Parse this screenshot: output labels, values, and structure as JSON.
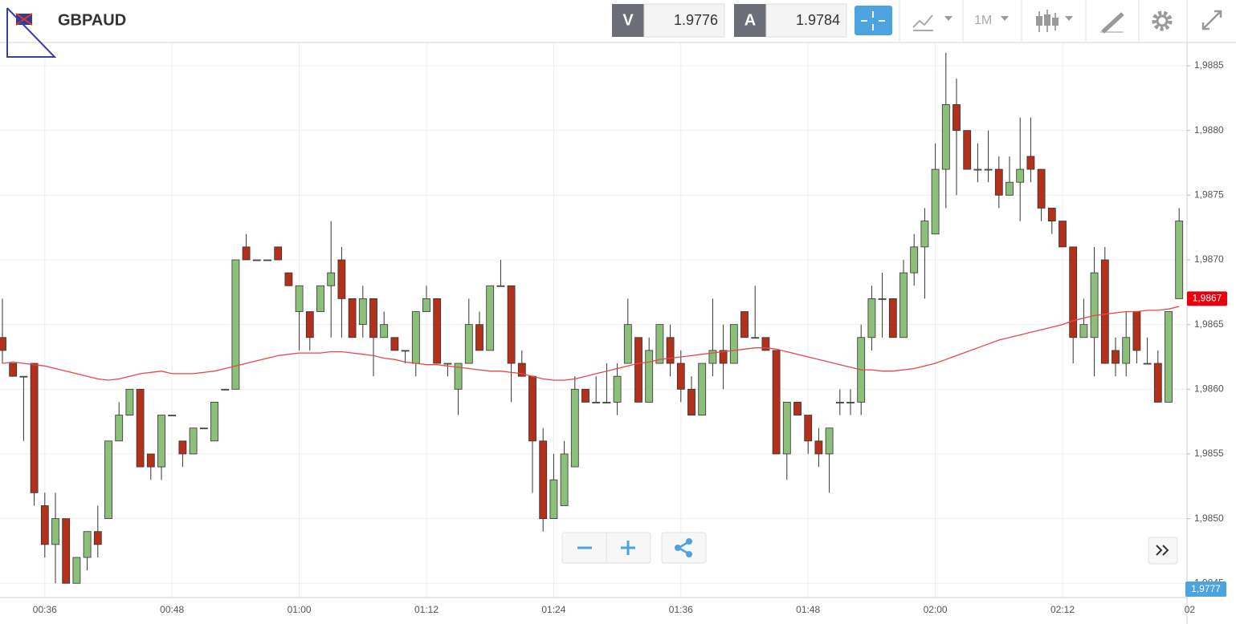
{
  "header": {
    "symbol": "GBPAUD",
    "bid_label": "V",
    "bid": "1.9776",
    "ask_label": "A",
    "ask": "1.9784",
    "timeframe": "1M"
  },
  "chart_data": {
    "type": "candlestick",
    "categories": [
      null,
      null,
      null,
      null,
      "00:36",
      null,
      null,
      null,
      null,
      null,
      null,
      null,
      null,
      null,
      null,
      null,
      "00:48",
      null,
      null,
      null,
      null,
      null,
      null,
      null,
      null,
      null,
      null,
      null,
      "01:00",
      null,
      null,
      null,
      null,
      null,
      null,
      null,
      null,
      null,
      null,
      null,
      "01:12",
      null,
      null,
      null,
      null,
      null,
      null,
      null,
      null,
      null,
      null,
      null,
      "01:24",
      null,
      null,
      null,
      null,
      null,
      null,
      null,
      null,
      null,
      null,
      null,
      "01:36",
      null,
      null,
      null,
      null,
      null,
      null,
      null,
      null,
      null,
      null,
      null,
      "01:48",
      null,
      null,
      null,
      null,
      null,
      null,
      null,
      null,
      null,
      null,
      null,
      "02:00",
      null,
      null,
      null,
      null,
      null,
      null,
      null,
      null,
      null,
      null,
      null,
      "02:12",
      null,
      null,
      null,
      null,
      null,
      null,
      null,
      null,
      null,
      null,
      null,
      "02"
    ],
    "open": [
      1.9864,
      1.9862,
      1.9861,
      1.9862,
      1.9851,
      1.9848,
      1.985,
      1.9845,
      1.9847,
      1.9849,
      1.985,
      1.9856,
      1.9858,
      1.986,
      1.9855,
      1.9854,
      1.9858,
      1.9856,
      1.9855,
      1.9857,
      1.9856,
      1.986,
      1.986,
      1.9871,
      1.987,
      1.987,
      1.9871,
      1.9869,
      1.9866,
      1.9866,
      1.9866,
      1.9868,
      1.987,
      1.9867,
      1.9865,
      1.9867,
      1.9864,
      1.9864,
      1.9863,
      1.9862,
      1.9866,
      1.9867,
      1.9862,
      1.986,
      1.9862,
      1.9865,
      1.9863,
      1.9868,
      1.9868,
      1.9862,
      1.9861,
      1.9856,
      1.985,
      1.9851,
      1.9854,
      1.986,
      1.9859,
      1.9859,
      1.9859,
      1.9862,
      1.9864,
      1.9859,
      1.9862,
      1.9864,
      1.9862,
      1.986,
      1.9858,
      1.9862,
      1.9863,
      1.9862,
      1.9866,
      1.9864,
      1.9864,
      1.9863,
      1.9855,
      1.9859,
      1.9858,
      1.9856,
      1.9855,
      1.9859,
      1.9859,
      1.9859,
      1.9864,
      1.9867,
      1.9867,
      1.9864,
      1.9869,
      1.9871,
      1.9872,
      1.9877,
      1.9882,
      1.988,
      1.9877,
      1.9877,
      1.9877,
      1.9875,
      1.9876,
      1.9878,
      1.9877,
      1.9874,
      1.9873,
      1.9871,
      1.9864,
      1.9864,
      1.987,
      1.9863,
      1.9862,
      1.9866,
      1.9862,
      1.9862,
      1.9859,
      1.9867,
      null
    ],
    "high": [
      1.9867,
      1.9862,
      1.9861,
      1.9862,
      1.9852,
      1.9852,
      1.985,
      1.9847,
      1.9849,
      1.9851,
      1.9856,
      1.9859,
      1.986,
      1.986,
      1.9855,
      1.9858,
      1.9858,
      1.9856,
      1.9857,
      1.9857,
      1.9859,
      1.986,
      1.987,
      1.9872,
      1.987,
      1.987,
      1.9871,
      1.9869,
      1.9868,
      1.9866,
      1.9868,
      1.9873,
      1.9871,
      1.9867,
      1.9868,
      1.9867,
      1.9866,
      1.9864,
      1.9863,
      1.9866,
      1.9868,
      1.9867,
      1.9862,
      1.9862,
      1.9867,
      1.9866,
      1.9868,
      1.987,
      1.9868,
      1.9863,
      1.9861,
      1.9857,
      1.9855,
      1.9856,
      1.9861,
      1.986,
      1.9861,
      1.9862,
      1.9862,
      1.9867,
      1.9864,
      1.9864,
      1.9865,
      1.9865,
      1.9863,
      1.9861,
      1.9862,
      1.9867,
      1.9865,
      1.9865,
      1.9866,
      1.9868,
      1.9864,
      1.9863,
      1.9859,
      1.9859,
      1.9858,
      1.9857,
      1.9857,
      1.986,
      1.986,
      1.9865,
      1.9868,
      1.9869,
      1.9867,
      1.987,
      1.9872,
      1.9874,
      1.9879,
      1.9886,
      1.9884,
      1.988,
      1.9879,
      1.988,
      1.9878,
      1.9878,
      1.9881,
      1.9881,
      1.9877,
      1.9874,
      1.9873,
      1.9871,
      1.9867,
      1.9871,
      1.9871,
      1.9864,
      1.9866,
      1.9866,
      1.9864,
      1.9863,
      1.9866,
      1.9874,
      null
    ],
    "low": [
      1.9862,
      1.9861,
      1.9856,
      1.9851,
      1.9847,
      1.9845,
      1.9845,
      1.9845,
      1.9846,
      1.9847,
      1.985,
      1.9856,
      1.9858,
      1.9854,
      1.9853,
      1.9853,
      1.9858,
      1.9854,
      1.9855,
      1.9857,
      1.9856,
      1.986,
      1.986,
      1.987,
      1.987,
      1.987,
      1.987,
      1.9868,
      1.9863,
      1.9863,
      1.9866,
      1.9864,
      1.9864,
      1.9864,
      1.9864,
      1.9861,
      1.9864,
      1.9863,
      1.9862,
      1.9861,
      1.9866,
      1.9862,
      1.9861,
      1.9858,
      1.9862,
      1.9863,
      1.9863,
      1.9868,
      1.9859,
      1.9861,
      1.9852,
      1.9849,
      1.985,
      1.9851,
      1.9854,
      1.9859,
      1.9859,
      1.9859,
      1.9858,
      1.9862,
      1.9859,
      1.9859,
      1.9862,
      1.9861,
      1.9859,
      1.9858,
      1.9858,
      1.9861,
      1.986,
      1.9862,
      1.9864,
      1.9864,
      1.9863,
      1.9855,
      1.9853,
      1.9858,
      1.9855,
      1.9854,
      1.9852,
      1.9858,
      1.9858,
      1.9858,
      1.9863,
      1.9864,
      1.9864,
      1.9864,
      1.9868,
      1.9867,
      1.9872,
      1.9874,
      1.9875,
      1.9877,
      1.9876,
      1.9876,
      1.9874,
      1.9875,
      1.9873,
      1.9876,
      1.9873,
      1.9872,
      1.9871,
      1.9862,
      1.9864,
      1.9861,
      1.9862,
      1.9861,
      1.9861,
      1.9862,
      1.9862,
      1.9859,
      1.9859,
      1.9867,
      null
    ],
    "close": [
      1.9863,
      1.9861,
      1.9861,
      1.9852,
      1.9848,
      1.985,
      1.9845,
      1.9847,
      1.9849,
      1.9848,
      1.9856,
      1.9858,
      1.986,
      1.9854,
      1.9854,
      1.9858,
      1.9858,
      1.9855,
      1.9857,
      1.9857,
      1.9859,
      1.986,
      1.987,
      1.987,
      1.987,
      1.987,
      1.987,
      1.9868,
      1.9868,
      1.9864,
      1.9868,
      1.9869,
      1.9867,
      1.9864,
      1.9867,
      1.9864,
      1.9865,
      1.9863,
      1.9863,
      1.9866,
      1.9867,
      1.9862,
      1.9862,
      1.9862,
      1.9865,
      1.9863,
      1.9868,
      1.9868,
      1.9862,
      1.9861,
      1.9856,
      1.985,
      1.9853,
      1.9855,
      1.986,
      1.9859,
      1.9859,
      1.9859,
      1.9861,
      1.9865,
      1.9859,
      1.9863,
      1.9865,
      1.9862,
      1.986,
      1.9858,
      1.9862,
      1.9863,
      1.9862,
      1.9865,
      1.9864,
      1.9864,
      1.9863,
      1.9855,
      1.9859,
      1.9858,
      1.9856,
      1.9855,
      1.9857,
      1.9859,
      1.9859,
      1.9864,
      1.9867,
      1.9867,
      1.9864,
      1.9869,
      1.9871,
      1.9873,
      1.9877,
      1.9882,
      1.988,
      1.9877,
      1.9877,
      1.9877,
      1.9875,
      1.9876,
      1.9877,
      1.9877,
      1.9874,
      1.9873,
      1.9871,
      1.9864,
      1.9865,
      1.9869,
      1.9862,
      1.9862,
      1.9864,
      1.9863,
      1.9862,
      1.9859,
      1.9866,
      1.9873,
      null
    ],
    "up_color": "#8cbf7a",
    "down_color": "#b3301b",
    "ma": {
      "color": "#e8474a",
      "values": [
        1.9862,
        1.98621,
        1.9862,
        1.98619,
        1.98618,
        1.98616,
        1.98614,
        1.98612,
        1.9861,
        1.98608,
        1.98607,
        1.98608,
        1.9861,
        1.98612,
        1.98613,
        1.98614,
        1.98612,
        1.98612,
        1.98612,
        1.98613,
        1.98614,
        1.98616,
        1.98618,
        1.9862,
        1.98622,
        1.98624,
        1.98626,
        1.98627,
        1.98628,
        1.98628,
        1.98628,
        1.98629,
        1.98629,
        1.98628,
        1.98627,
        1.98626,
        1.98624,
        1.98623,
        1.98621,
        1.9862,
        1.98619,
        1.98619,
        1.98618,
        1.98617,
        1.98616,
        1.98615,
        1.98614,
        1.98614,
        1.98613,
        1.98612,
        1.9861,
        1.98608,
        1.98607,
        1.98607,
        1.98608,
        1.9861,
        1.98612,
        1.98614,
        1.98616,
        1.98618,
        1.9862,
        1.98621,
        1.98623,
        1.98624,
        1.98625,
        1.98626,
        1.98627,
        1.98628,
        1.98629,
        1.9863,
        1.98631,
        1.98632,
        1.98632,
        1.98631,
        1.98629,
        1.98627,
        1.98625,
        1.98623,
        1.98621,
        1.98619,
        1.98617,
        1.98615,
        1.98615,
        1.98614,
        1.98614,
        1.98615,
        1.98616,
        1.98618,
        1.9862,
        1.98623,
        1.98626,
        1.98629,
        1.98632,
        1.98635,
        1.98638,
        1.9864,
        1.98642,
        1.98644,
        1.98646,
        1.98648,
        1.9865,
        1.98653,
        1.98655,
        1.98657,
        1.98658,
        1.98659,
        1.9866,
        1.9866,
        1.98661,
        1.98661,
        1.98662,
        1.98664,
        null
      ]
    },
    "ylim": [
      1.98439,
      1.98868
    ],
    "yticks": [
      {
        "value": 1.9845,
        "label": "1,9845"
      },
      {
        "value": 1.985,
        "label": "1,9850"
      },
      {
        "value": 1.9855,
        "label": "1,9855"
      },
      {
        "value": 1.986,
        "label": "1,9860"
      },
      {
        "value": 1.9865,
        "label": "1,9865"
      },
      {
        "value": 1.987,
        "label": "1,9870"
      },
      {
        "value": 1.9875,
        "label": "1,9875"
      },
      {
        "value": 1.988,
        "label": "1,9880"
      },
      {
        "value": 1.9885,
        "label": "1,9885"
      }
    ],
    "last_price": {
      "value": 1.9867,
      "label": "1,9867"
    },
    "bottom_tag": "1,9777",
    "grid": true
  }
}
